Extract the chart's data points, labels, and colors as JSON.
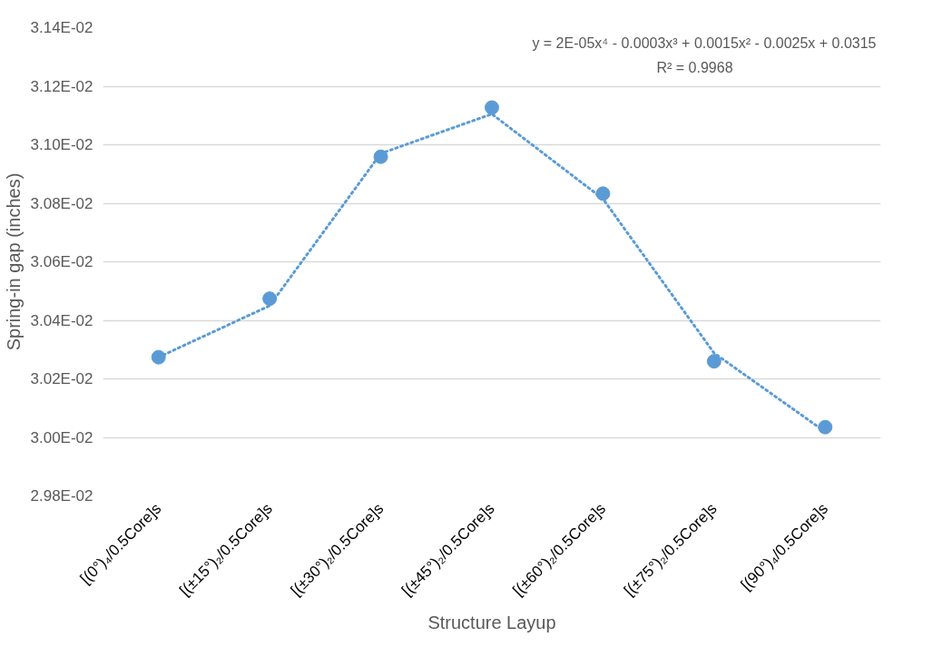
{
  "chart_data": {
    "type": "scatter",
    "xlabel": "Structure Layup",
    "ylabel": "Spring-in gap (inches)",
    "annotations": [
      "y = 2E-05x⁴ - 0.0003x³ + 0.0015x² - 0.0025x + 0.0315",
      "R² = 0.9968"
    ],
    "categories": [
      "[(0°)₄/0.5Core]s",
      "[(±15°)₂/0.5Core]s",
      "[(±30°)₂/0.5Core]s",
      "[(±45°)₂/0.5Core]s",
      "[(±60°)₂/0.5Core]s",
      "[(±75°)₂/0.5Core]s",
      "[(90°)₄/0.5Core]s"
    ],
    "ylim": [
      0.0298,
      0.0314
    ],
    "yticks": [
      {
        "value": 0.0298,
        "label": "2.98E-02"
      },
      {
        "value": 0.03,
        "label": "3.00E-02"
      },
      {
        "value": 0.0302,
        "label": "3.02E-02"
      },
      {
        "value": 0.0304,
        "label": "3.04E-02"
      },
      {
        "value": 0.0306,
        "label": "3.06E-02"
      },
      {
        "value": 0.0308,
        "label": "3.08E-02"
      },
      {
        "value": 0.031,
        "label": "3.10E-02"
      },
      {
        "value": 0.0312,
        "label": "3.12E-02"
      },
      {
        "value": 0.0314,
        "label": "3.14E-02"
      }
    ],
    "grid": "y",
    "series": [
      {
        "color": "#5b9bd5",
        "marker": "circle",
        "values": [
          0.030274,
          0.030474,
          0.030959,
          0.031127,
          0.030833,
          0.03026,
          0.030035
        ]
      },
      {
        "type": "line",
        "color": "#5b9bd5",
        "line_style": "dotted",
        "values": [
          0.030274,
          0.03045,
          0.03097,
          0.031105,
          0.030815,
          0.030288,
          0.030019
        ]
      }
    ]
  }
}
